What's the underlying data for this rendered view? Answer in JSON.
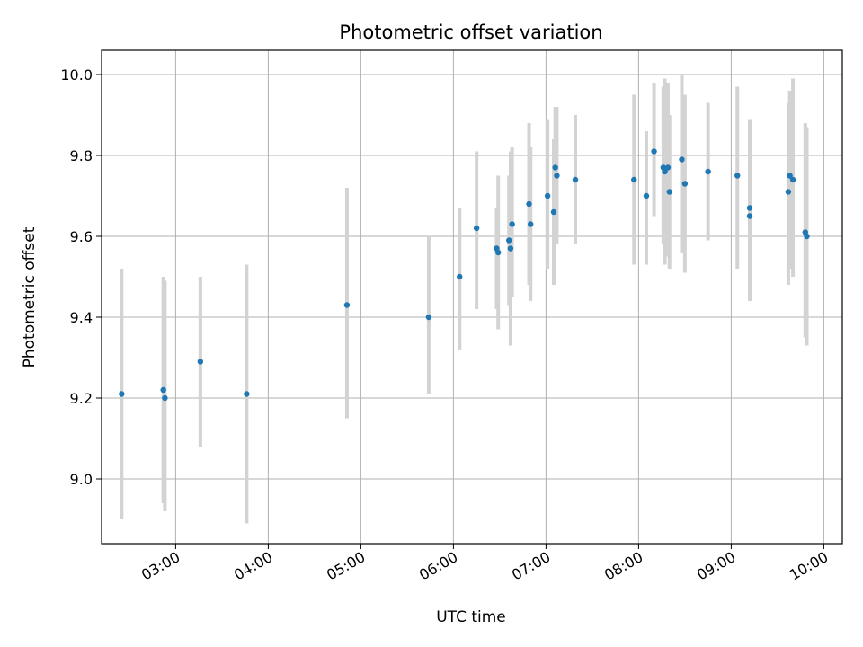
{
  "chart_data": {
    "type": "scatter",
    "title": "Photometric offset variation",
    "xlabel": "UTC time",
    "ylabel": "Photometric offset",
    "x_tick_labels": [
      "03:00",
      "04:00",
      "05:00",
      "06:00",
      "07:00",
      "08:00",
      "09:00",
      "10:00"
    ],
    "x_ticks": [
      "03:00",
      "04:00",
      "05:00",
      "06:00",
      "07:00",
      "08:00",
      "09:00",
      "10:00"
    ],
    "y_tick_labels": [
      "9.0",
      "9.2",
      "9.4",
      "9.6",
      "9.8",
      "10.0"
    ],
    "y_ticks": [
      9.0,
      9.2,
      9.4,
      9.6,
      9.8,
      10.0
    ],
    "xlim": [
      "02:12",
      "10:12"
    ],
    "ylim": [
      8.84,
      10.06
    ],
    "grid": true,
    "colors": {
      "point": "#1f77b4",
      "errorbar": "#d3d3d3",
      "grid": "#b0b0b0"
    },
    "series": [
      {
        "points": [
          {
            "x": "02:25",
            "y": 9.21,
            "ylo": 8.9,
            "yhi": 9.52
          },
          {
            "x": "02:52",
            "y": 9.22,
            "ylo": 8.94,
            "yhi": 9.5
          },
          {
            "x": "02:53",
            "y": 9.2,
            "ylo": 8.92,
            "yhi": 9.49
          },
          {
            "x": "03:16",
            "y": 9.29,
            "ylo": 9.08,
            "yhi": 9.5
          },
          {
            "x": "03:46",
            "y": 9.21,
            "ylo": 8.89,
            "yhi": 9.53
          },
          {
            "x": "04:51",
            "y": 9.43,
            "ylo": 9.15,
            "yhi": 9.72
          },
          {
            "x": "05:44",
            "y": 9.4,
            "ylo": 9.21,
            "yhi": 9.6
          },
          {
            "x": "06:04",
            "y": 9.5,
            "ylo": 9.32,
            "yhi": 9.67
          },
          {
            "x": "06:15",
            "y": 9.62,
            "ylo": 9.42,
            "yhi": 9.81
          },
          {
            "x": "06:28",
            "y": 9.57,
            "ylo": 9.42,
            "yhi": 9.67
          },
          {
            "x": "06:29",
            "y": 9.56,
            "ylo": 9.37,
            "yhi": 9.75
          },
          {
            "x": "06:36",
            "y": 9.59,
            "ylo": 9.43,
            "yhi": 9.75
          },
          {
            "x": "06:37",
            "y": 9.57,
            "ylo": 9.33,
            "yhi": 9.81
          },
          {
            "x": "06:38",
            "y": 9.63,
            "ylo": 9.45,
            "yhi": 9.82
          },
          {
            "x": "06:49",
            "y": 9.68,
            "ylo": 9.48,
            "yhi": 9.88
          },
          {
            "x": "06:50",
            "y": 9.63,
            "ylo": 9.44,
            "yhi": 9.82
          },
          {
            "x": "07:01",
            "y": 9.7,
            "ylo": 9.52,
            "yhi": 9.89
          },
          {
            "x": "07:05",
            "y": 9.66,
            "ylo": 9.48,
            "yhi": 9.84
          },
          {
            "x": "07:06",
            "y": 9.77,
            "ylo": 9.61,
            "yhi": 9.92
          },
          {
            "x": "07:07",
            "y": 9.75,
            "ylo": 9.58,
            "yhi": 9.92
          },
          {
            "x": "07:19",
            "y": 9.74,
            "ylo": 9.58,
            "yhi": 9.9
          },
          {
            "x": "07:57",
            "y": 9.74,
            "ylo": 9.53,
            "yhi": 9.95
          },
          {
            "x": "08:05",
            "y": 9.7,
            "ylo": 9.53,
            "yhi": 9.86
          },
          {
            "x": "08:10",
            "y": 9.81,
            "ylo": 9.65,
            "yhi": 9.98
          },
          {
            "x": "08:16",
            "y": 9.77,
            "ylo": 9.58,
            "yhi": 9.97
          },
          {
            "x": "08:17",
            "y": 9.76,
            "ylo": 9.53,
            "yhi": 9.99
          },
          {
            "x": "08:19",
            "y": 9.77,
            "ylo": 9.55,
            "yhi": 9.98
          },
          {
            "x": "08:20",
            "y": 9.71,
            "ylo": 9.52,
            "yhi": 9.9
          },
          {
            "x": "08:28",
            "y": 9.79,
            "ylo": 9.56,
            "yhi": 10.0
          },
          {
            "x": "08:30",
            "y": 9.73,
            "ylo": 9.51,
            "yhi": 9.95
          },
          {
            "x": "08:45",
            "y": 9.76,
            "ylo": 9.59,
            "yhi": 9.93
          },
          {
            "x": "09:04",
            "y": 9.75,
            "ylo": 9.52,
            "yhi": 9.97
          },
          {
            "x": "09:12",
            "y": 9.67,
            "ylo": 9.45,
            "yhi": 9.89
          },
          {
            "x": "09:12",
            "y": 9.65,
            "ylo": 9.44,
            "yhi": 9.86
          },
          {
            "x": "09:37",
            "y": 9.71,
            "ylo": 9.48,
            "yhi": 9.93
          },
          {
            "x": "09:38",
            "y": 9.75,
            "ylo": 9.52,
            "yhi": 9.96
          },
          {
            "x": "09:40",
            "y": 9.74,
            "ylo": 9.5,
            "yhi": 9.99
          },
          {
            "x": "09:48",
            "y": 9.61,
            "ylo": 9.35,
            "yhi": 9.88
          },
          {
            "x": "09:49",
            "y": 9.6,
            "ylo": 9.33,
            "yhi": 9.87
          }
        ]
      }
    ]
  }
}
